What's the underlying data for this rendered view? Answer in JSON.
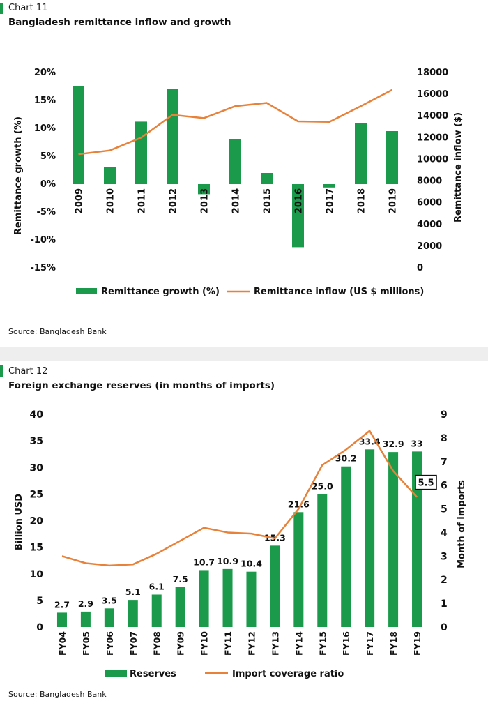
{
  "charts": [
    {
      "label": "Chart 11",
      "title": "Bangladesh remittance inflow and growth",
      "source": "Source: Bangladesh Bank",
      "left_axis_label": "Remittance growth (%)",
      "right_axis_label": "Remittance inflow ($)",
      "left_ticks": [
        "20%",
        "15%",
        "10%",
        "5%",
        "0%",
        "-5%",
        "-10%",
        "-15%"
      ],
      "right_ticks": [
        "18000",
        "16000",
        "14000",
        "12000",
        "10000",
        "8000",
        "6000",
        "4000",
        "2000",
        "0"
      ],
      "legend": [
        "Remittance growth (%)",
        "Remittance inflow (US $ millions)"
      ]
    },
    {
      "label": "Chart 12",
      "title": "Foreign exchange reserves (in months of imports)",
      "source": "Source: Bangladesh Bank",
      "left_axis_label": "Billion USD",
      "right_axis_label": "Month of imports",
      "left_ticks": [
        "40",
        "35",
        "30",
        "25",
        "20",
        "15",
        "10",
        "5",
        "0"
      ],
      "right_ticks": [
        "9",
        "8",
        "7",
        "6",
        "5",
        "4",
        "3",
        "2",
        "1",
        "0"
      ],
      "legend": [
        "Reserves",
        "Import coverage ratio"
      ],
      "callout": "5.5"
    }
  ],
  "colors": {
    "bar": "#1a9a4a",
    "line": "#e8823a",
    "label_bar": "#1a9a4a",
    "gap": "#eeeeee"
  },
  "chart_data": [
    {
      "type": "bar",
      "categories": [
        "2009",
        "2010",
        "2011",
        "2012",
        "2013",
        "2014",
        "2015",
        "2016",
        "2017",
        "2018",
        "2019"
      ],
      "series": [
        {
          "name": "Remittance growth (%)",
          "type": "bar",
          "axis": "left",
          "values": [
            17.6,
            3.1,
            11.2,
            17.0,
            -1.8,
            8.0,
            2.0,
            -11.3,
            -0.6,
            10.9,
            9.5
          ]
        },
        {
          "name": "Remittance inflow (US $ millions)",
          "type": "line",
          "axis": "right",
          "values": [
            10470,
            10820,
            12000,
            14100,
            13800,
            14900,
            15200,
            13500,
            13450,
            14900,
            16400
          ]
        }
      ],
      "ylabel": "Remittance growth (%)",
      "y2label": "Remittance inflow ($)",
      "ylim": [
        -15,
        20
      ],
      "y2lim": [
        0,
        18000
      ],
      "legend_position": "bottom"
    },
    {
      "type": "bar",
      "categories": [
        "FY04",
        "FY05",
        "FY06",
        "FY07",
        "FY08",
        "FY09",
        "FY10",
        "FY11",
        "FY12",
        "FY13",
        "FY14",
        "FY15",
        "FY16",
        "FY17",
        "FY18",
        "FY19"
      ],
      "series": [
        {
          "name": "Reserves",
          "type": "bar",
          "axis": "left",
          "values": [
            2.7,
            2.9,
            3.5,
            5.1,
            6.1,
            7.5,
            10.7,
            10.9,
            10.4,
            15.3,
            21.6,
            25.0,
            30.2,
            33.4,
            32.9,
            33
          ],
          "labels": [
            "2.7",
            "2.9",
            "3.5",
            "5.1",
            "6.1",
            "7.5",
            "10.7",
            "10.9",
            "10.4",
            "15.3",
            "21.6",
            "25.0",
            "30.2",
            "33.4",
            "32.9",
            "33"
          ]
        },
        {
          "name": "Import coverage ratio",
          "type": "line",
          "axis": "right",
          "values": [
            3.0,
            2.7,
            2.6,
            2.65,
            3.1,
            3.65,
            4.2,
            4.0,
            3.95,
            3.75,
            5.0,
            6.85,
            7.5,
            8.3,
            6.6,
            5.5
          ]
        }
      ],
      "ylabel": "Billion USD",
      "y2label": "Month of imports",
      "ylim": [
        0,
        40
      ],
      "y2lim": [
        0,
        9
      ],
      "legend_position": "bottom"
    }
  ]
}
